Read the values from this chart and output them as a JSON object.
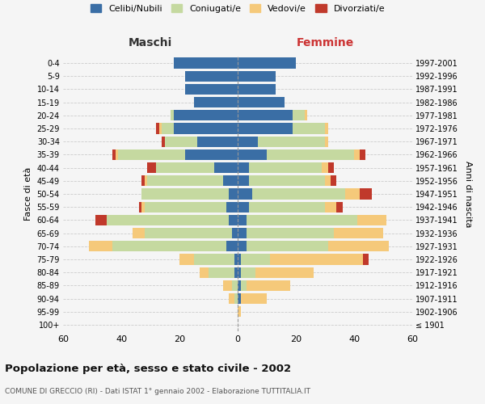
{
  "age_groups": [
    "100+",
    "95-99",
    "90-94",
    "85-89",
    "80-84",
    "75-79",
    "70-74",
    "65-69",
    "60-64",
    "55-59",
    "50-54",
    "45-49",
    "40-44",
    "35-39",
    "30-34",
    "25-29",
    "20-24",
    "15-19",
    "10-14",
    "5-9",
    "0-4"
  ],
  "birth_years": [
    "≤ 1901",
    "1902-1906",
    "1907-1911",
    "1912-1916",
    "1917-1921",
    "1922-1926",
    "1927-1931",
    "1932-1936",
    "1937-1941",
    "1942-1946",
    "1947-1951",
    "1952-1956",
    "1957-1961",
    "1962-1966",
    "1967-1971",
    "1972-1976",
    "1977-1981",
    "1982-1986",
    "1987-1991",
    "1992-1996",
    "1997-2001"
  ],
  "maschi": {
    "celibi": [
      0,
      0,
      0,
      0,
      1,
      1,
      4,
      2,
      3,
      4,
      3,
      5,
      8,
      18,
      14,
      22,
      22,
      15,
      18,
      18,
      22
    ],
    "coniugati": [
      0,
      0,
      1,
      2,
      9,
      14,
      39,
      30,
      42,
      28,
      30,
      26,
      20,
      23,
      11,
      4,
      1,
      0,
      0,
      0,
      0
    ],
    "vedovi": [
      0,
      0,
      2,
      3,
      3,
      5,
      8,
      4,
      0,
      1,
      0,
      1,
      0,
      1,
      0,
      1,
      0,
      0,
      0,
      0,
      0
    ],
    "divorziati": [
      0,
      0,
      0,
      0,
      0,
      0,
      0,
      0,
      4,
      1,
      0,
      1,
      3,
      1,
      1,
      1,
      0,
      0,
      0,
      0,
      0
    ]
  },
  "femmine": {
    "nubili": [
      0,
      0,
      1,
      1,
      1,
      1,
      3,
      3,
      3,
      4,
      5,
      4,
      4,
      10,
      7,
      19,
      19,
      16,
      13,
      13,
      20
    ],
    "coniugate": [
      0,
      0,
      0,
      2,
      5,
      10,
      28,
      30,
      38,
      26,
      32,
      26,
      25,
      30,
      23,
      11,
      4,
      0,
      0,
      0,
      0
    ],
    "vedove": [
      0,
      1,
      9,
      15,
      20,
      32,
      21,
      17,
      10,
      4,
      5,
      2,
      2,
      2,
      1,
      1,
      1,
      0,
      0,
      0,
      0
    ],
    "divorziate": [
      0,
      0,
      0,
      0,
      0,
      2,
      0,
      0,
      0,
      2,
      4,
      2,
      2,
      2,
      0,
      0,
      0,
      0,
      0,
      0,
      0
    ]
  },
  "colors": {
    "celibe": "#3a6ea5",
    "coniugato": "#c5d9a0",
    "vedovo": "#f5c97a",
    "divorziato": "#c0392b"
  },
  "title": "Popolazione per età, sesso e stato civile - 2002",
  "subtitle": "COMUNE DI GRECCIO (RI) - Dati ISTAT 1° gennaio 2002 - Elaborazione TUTTITALIA.IT",
  "xlabel_left": "Maschi",
  "xlabel_right": "Femmine",
  "ylabel_left": "Fasce di età",
  "ylabel_right": "Anni di nascita",
  "xlim": 60,
  "bg_color": "#f5f5f5",
  "grid_color": "#cccccc"
}
